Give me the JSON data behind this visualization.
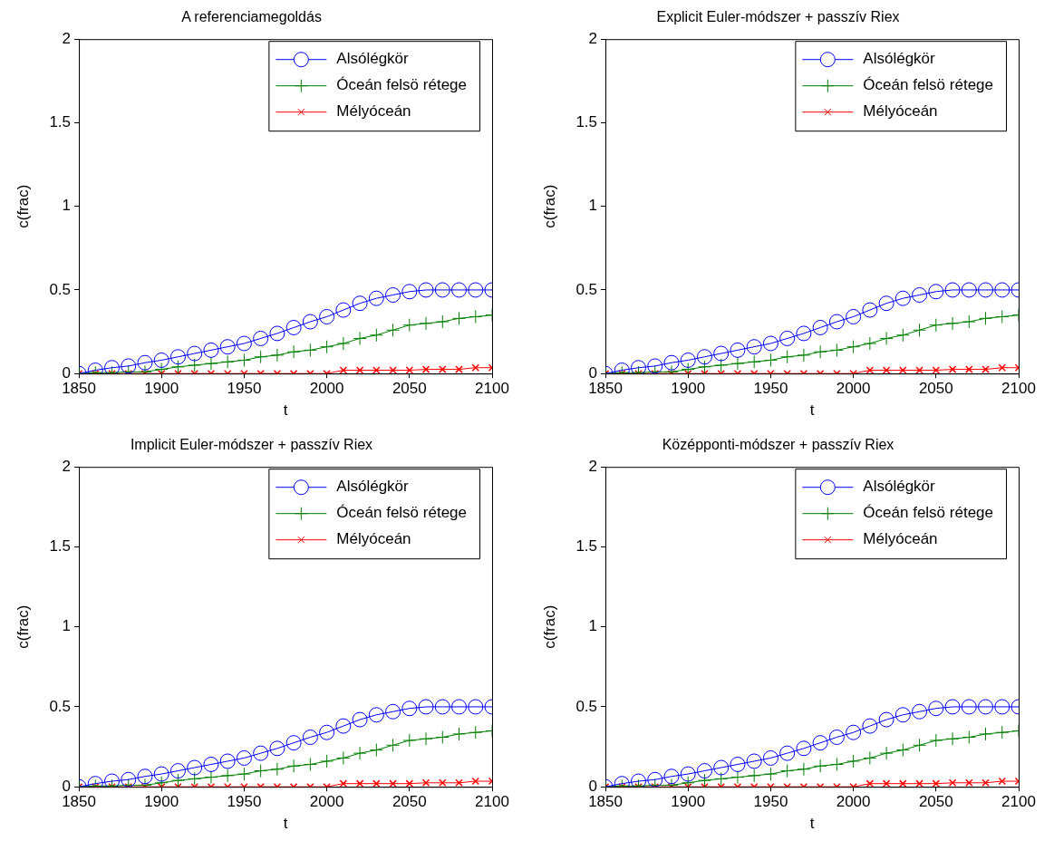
{
  "chart_data": [
    {
      "type": "line",
      "title": "A referenciamegoldás",
      "xlabel": "t",
      "ylabel": "c(frac)",
      "x": [
        1850,
        1860,
        1870,
        1880,
        1890,
        1900,
        1910,
        1920,
        1930,
        1940,
        1950,
        1960,
        1970,
        1980,
        1990,
        2000,
        2010,
        2020,
        2030,
        2040,
        2050,
        2060,
        2070,
        2080,
        2090,
        2100
      ],
      "xlim": [
        1850,
        2100
      ],
      "xticks": [
        1850,
        1900,
        1950,
        2000,
        2050,
        2100
      ],
      "ylim": [
        0,
        2
      ],
      "yticks": [
        0,
        0.5,
        1,
        1.5,
        2
      ],
      "legend": "top right",
      "grid": false,
      "series": [
        {
          "name": "Alsólégkör",
          "color": "#0000ff",
          "marker": "circle",
          "values": [
            0,
            0.02,
            0.035,
            0.045,
            0.065,
            0.08,
            0.1,
            0.12,
            0.14,
            0.16,
            0.18,
            0.21,
            0.24,
            0.275,
            0.31,
            0.34,
            0.38,
            0.42,
            0.45,
            0.47,
            0.49,
            0.5,
            0.5,
            0.5,
            0.5,
            0.5
          ]
        },
        {
          "name": "Óceán felsö rétege",
          "color": "#008000",
          "marker": "cross",
          "values": [
            0,
            0.005,
            0.005,
            0.01,
            0.01,
            0.025,
            0.04,
            0.05,
            0.06,
            0.07,
            0.08,
            0.1,
            0.11,
            0.13,
            0.14,
            0.16,
            0.18,
            0.21,
            0.23,
            0.26,
            0.29,
            0.3,
            0.31,
            0.33,
            0.34,
            0.35
          ]
        },
        {
          "name": "Mélyóceán",
          "color": "#ff0000",
          "marker": "x",
          "values": [
            0,
            0,
            0,
            0,
            0,
            0,
            0,
            0,
            0,
            0,
            0,
            0,
            0,
            0,
            0,
            0,
            0.02,
            0.02,
            0.02,
            0.02,
            0.02,
            0.025,
            0.025,
            0.025,
            0.035,
            0.035
          ]
        }
      ]
    },
    {
      "type": "line",
      "title": "Explicit Euler-módszer + passzív Riex",
      "xlabel": "t",
      "ylabel": "c(frac)",
      "x": [
        1850,
        1860,
        1870,
        1880,
        1890,
        1900,
        1910,
        1920,
        1930,
        1940,
        1950,
        1960,
        1970,
        1980,
        1990,
        2000,
        2010,
        2020,
        2030,
        2040,
        2050,
        2060,
        2070,
        2080,
        2090,
        2100
      ],
      "xlim": [
        1850,
        2100
      ],
      "xticks": [
        1850,
        1900,
        1950,
        2000,
        2050,
        2100
      ],
      "ylim": [
        0,
        2
      ],
      "yticks": [
        0,
        0.5,
        1,
        1.5,
        2
      ],
      "legend": "top right",
      "grid": false,
      "series": [
        {
          "name": "Alsólégkör",
          "color": "#0000ff",
          "marker": "circle",
          "values": [
            0,
            0.02,
            0.035,
            0.045,
            0.065,
            0.08,
            0.1,
            0.12,
            0.14,
            0.16,
            0.18,
            0.21,
            0.24,
            0.275,
            0.31,
            0.34,
            0.38,
            0.42,
            0.45,
            0.47,
            0.49,
            0.5,
            0.5,
            0.5,
            0.5,
            0.5
          ]
        },
        {
          "name": "Óceán felsö rétege",
          "color": "#008000",
          "marker": "cross",
          "values": [
            0,
            0.005,
            0.005,
            0.01,
            0.01,
            0.025,
            0.04,
            0.05,
            0.06,
            0.07,
            0.08,
            0.1,
            0.11,
            0.13,
            0.14,
            0.16,
            0.18,
            0.21,
            0.23,
            0.26,
            0.29,
            0.3,
            0.31,
            0.33,
            0.34,
            0.35
          ]
        },
        {
          "name": "Mélyóceán",
          "color": "#ff0000",
          "marker": "x",
          "values": [
            0,
            0,
            0,
            0,
            0,
            0,
            0,
            0,
            0,
            0,
            0,
            0,
            0,
            0,
            0,
            0,
            0.02,
            0.02,
            0.02,
            0.02,
            0.02,
            0.025,
            0.025,
            0.025,
            0.035,
            0.035
          ]
        }
      ]
    },
    {
      "type": "line",
      "title": "Implicit Euler-módszer + passzív Riex",
      "xlabel": "t",
      "ylabel": "c(frac)",
      "x": [
        1850,
        1860,
        1870,
        1880,
        1890,
        1900,
        1910,
        1920,
        1930,
        1940,
        1950,
        1960,
        1970,
        1980,
        1990,
        2000,
        2010,
        2020,
        2030,
        2040,
        2050,
        2060,
        2070,
        2080,
        2090,
        2100
      ],
      "xlim": [
        1850,
        2100
      ],
      "xticks": [
        1850,
        1900,
        1950,
        2000,
        2050,
        2100
      ],
      "ylim": [
        0,
        2
      ],
      "yticks": [
        0,
        0.5,
        1,
        1.5,
        2
      ],
      "legend": "top right",
      "grid": false,
      "series": [
        {
          "name": "Alsólégkör",
          "color": "#0000ff",
          "marker": "circle",
          "values": [
            0,
            0.02,
            0.035,
            0.045,
            0.065,
            0.08,
            0.1,
            0.12,
            0.14,
            0.16,
            0.18,
            0.21,
            0.24,
            0.275,
            0.31,
            0.34,
            0.38,
            0.42,
            0.45,
            0.47,
            0.49,
            0.5,
            0.5,
            0.5,
            0.5,
            0.5
          ]
        },
        {
          "name": "Óceán felsö rétege",
          "color": "#008000",
          "marker": "cross",
          "values": [
            0,
            0.005,
            0.005,
            0.01,
            0.01,
            0.025,
            0.04,
            0.05,
            0.06,
            0.07,
            0.08,
            0.1,
            0.11,
            0.13,
            0.14,
            0.16,
            0.18,
            0.21,
            0.23,
            0.26,
            0.29,
            0.3,
            0.31,
            0.33,
            0.34,
            0.35
          ]
        },
        {
          "name": "Mélyóceán",
          "color": "#ff0000",
          "marker": "x",
          "values": [
            0,
            0,
            0,
            0,
            0,
            0,
            0,
            0,
            0,
            0,
            0,
            0,
            0,
            0,
            0,
            0,
            0.02,
            0.02,
            0.02,
            0.02,
            0.02,
            0.025,
            0.025,
            0.025,
            0.035,
            0.035
          ]
        }
      ]
    },
    {
      "type": "line",
      "title": "Középponti-módszer + passzív Riex",
      "xlabel": "t",
      "ylabel": "c(frac)",
      "x": [
        1850,
        1860,
        1870,
        1880,
        1890,
        1900,
        1910,
        1920,
        1930,
        1940,
        1950,
        1960,
        1970,
        1980,
        1990,
        2000,
        2010,
        2020,
        2030,
        2040,
        2050,
        2060,
        2070,
        2080,
        2090,
        2100
      ],
      "xlim": [
        1850,
        2100
      ],
      "xticks": [
        1850,
        1900,
        1950,
        2000,
        2050,
        2100
      ],
      "ylim": [
        0,
        2
      ],
      "yticks": [
        0,
        0.5,
        1,
        1.5,
        2
      ],
      "legend": "top right",
      "grid": false,
      "series": [
        {
          "name": "Alsólégkör",
          "color": "#0000ff",
          "marker": "circle",
          "values": [
            0,
            0.02,
            0.035,
            0.045,
            0.065,
            0.08,
            0.1,
            0.12,
            0.14,
            0.16,
            0.18,
            0.21,
            0.24,
            0.275,
            0.31,
            0.34,
            0.38,
            0.42,
            0.45,
            0.47,
            0.49,
            0.5,
            0.5,
            0.5,
            0.5,
            0.5
          ]
        },
        {
          "name": "Óceán felsö rétege",
          "color": "#008000",
          "marker": "cross",
          "values": [
            0,
            0.005,
            0.005,
            0.01,
            0.01,
            0.025,
            0.04,
            0.05,
            0.06,
            0.07,
            0.08,
            0.1,
            0.11,
            0.13,
            0.14,
            0.16,
            0.18,
            0.21,
            0.23,
            0.26,
            0.29,
            0.3,
            0.31,
            0.33,
            0.34,
            0.35
          ]
        },
        {
          "name": "Mélyóceán",
          "color": "#ff0000",
          "marker": "x",
          "values": [
            0,
            0,
            0,
            0,
            0,
            0,
            0,
            0,
            0,
            0,
            0,
            0,
            0,
            0,
            0,
            0,
            0.02,
            0.02,
            0.02,
            0.02,
            0.02,
            0.025,
            0.025,
            0.025,
            0.035,
            0.035
          ]
        }
      ]
    }
  ]
}
